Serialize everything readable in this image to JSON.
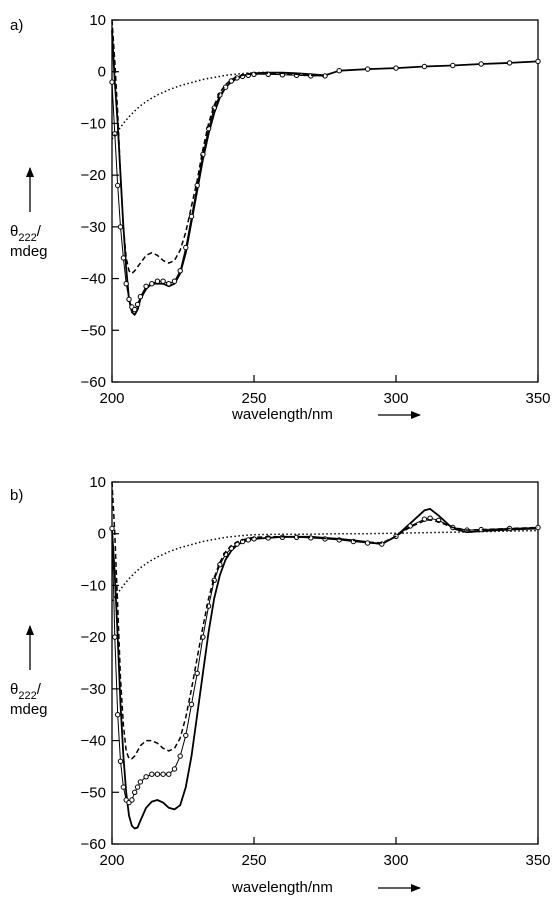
{
  "chart_data": [
    {
      "type": "line",
      "panel_label": "a)",
      "xlabel": "wavelength/nm",
      "ylabel_symbol": "θ",
      "ylabel_subscript": "222",
      "ylabel_slash": "/",
      "ylabel_unit": "mdeg",
      "xlim": [
        200,
        350
      ],
      "ylim": [
        -60,
        10
      ],
      "xticks": [
        200,
        250,
        300,
        350
      ],
      "yticks": [
        10,
        0,
        -10,
        -20,
        -30,
        -40,
        -50,
        -60
      ],
      "grid": false,
      "series": [
        {
          "style": "solid",
          "x": [
            200,
            201,
            202,
            203,
            204,
            205,
            206,
            207,
            208,
            209,
            210,
            212,
            214,
            216,
            218,
            220,
            222,
            224,
            226,
            228,
            230,
            232,
            234,
            236,
            238,
            240,
            242,
            244,
            246,
            248,
            250,
            255,
            260,
            265,
            270,
            275,
            280,
            290,
            300,
            310,
            320,
            330,
            340,
            350
          ],
          "y": [
            8,
            -2,
            -10,
            -20,
            -30,
            -38,
            -44,
            -46.5,
            -47,
            -46,
            -44,
            -42,
            -41,
            -41,
            -41,
            -41.5,
            -41,
            -39,
            -35,
            -29,
            -23,
            -17,
            -12,
            -8,
            -5,
            -3,
            -2,
            -1.3,
            -0.8,
            -0.5,
            -0.3,
            -0.2,
            -0.2,
            -0.3,
            -0.5,
            -0.7,
            0.2,
            0.5,
            0.7,
            1.0,
            1.2,
            1.5,
            1.7,
            2.0
          ]
        },
        {
          "style": "circles",
          "x": [
            200,
            201,
            202,
            203,
            204,
            205,
            206,
            207,
            208,
            209,
            210,
            212,
            214,
            216,
            218,
            220,
            222,
            224,
            226,
            228,
            230,
            232,
            234,
            236,
            238,
            240,
            242,
            244,
            246,
            248,
            250,
            255,
            260,
            265,
            270,
            275,
            280,
            290,
            300,
            310,
            320,
            330,
            340,
            350
          ],
          "y": [
            -2,
            -12,
            -22,
            -30,
            -36,
            -41,
            -44,
            -45.5,
            -46,
            -45,
            -43.5,
            -41.5,
            -41,
            -40.5,
            -40.5,
            -41,
            -40.5,
            -38.5,
            -34,
            -28,
            -22,
            -16,
            -11,
            -7,
            -4.5,
            -3,
            -1.8,
            -1.2,
            -0.9,
            -0.7,
            -0.5,
            -0.5,
            -0.6,
            -0.7,
            -0.8,
            -0.8,
            0.2,
            0.5,
            0.7,
            1.0,
            1.2,
            1.5,
            1.7,
            2.0
          ]
        },
        {
          "style": "dashed",
          "x": [
            200,
            201,
            202,
            203,
            204,
            205,
            206,
            207,
            208,
            210,
            212,
            214,
            216,
            218,
            220,
            222,
            224,
            226,
            228,
            230,
            232,
            234,
            236,
            238,
            240,
            242,
            244,
            246,
            248,
            250,
            255,
            260,
            265,
            270,
            275
          ],
          "y": [
            10,
            2,
            -8,
            -20,
            -30,
            -36,
            -38.5,
            -39,
            -38.5,
            -37,
            -35.5,
            -35,
            -35.5,
            -36.5,
            -37,
            -36.5,
            -34.5,
            -31,
            -26,
            -21,
            -15,
            -10,
            -6.5,
            -4,
            -2.5,
            -1.5,
            -1,
            -0.7,
            -0.5,
            -0.4,
            -0.3,
            -0.3,
            -0.5,
            -0.7,
            -0.8
          ]
        },
        {
          "style": "dotted",
          "x": [
            200,
            202,
            204,
            206,
            208,
            210,
            212,
            214,
            216,
            218,
            220,
            222,
            224,
            226,
            228,
            230,
            232,
            234,
            236,
            238,
            240,
            245,
            250,
            255
          ],
          "y": [
            -13,
            -11.5,
            -10,
            -8.7,
            -7.6,
            -6.6,
            -5.8,
            -5.1,
            -4.5,
            -4,
            -3.5,
            -3.1,
            -2.7,
            -2.4,
            -2.1,
            -1.8,
            -1.5,
            -1.3,
            -1.1,
            -0.9,
            -0.7,
            -0.4,
            -0.2,
            -0.1
          ]
        }
      ]
    },
    {
      "type": "line",
      "panel_label": "b)",
      "xlabel": "wavelength/nm",
      "ylabel_symbol": "θ",
      "ylabel_subscript": "222",
      "ylabel_slash": "/",
      "ylabel_unit": "mdeg",
      "xlim": [
        200,
        350
      ],
      "ylim": [
        -60,
        10
      ],
      "xticks": [
        200,
        250,
        300,
        350
      ],
      "yticks": [
        10,
        0,
        -10,
        -20,
        -30,
        -40,
        -50,
        -60
      ],
      "grid": false,
      "series": [
        {
          "style": "solid",
          "x": [
            200,
            201,
            202,
            203,
            204,
            205,
            206,
            207,
            208,
            209,
            210,
            212,
            214,
            216,
            218,
            220,
            222,
            224,
            226,
            228,
            230,
            232,
            234,
            236,
            238,
            240,
            242,
            244,
            246,
            248,
            250,
            255,
            260,
            265,
            270,
            275,
            280,
            285,
            290,
            295,
            300,
            305,
            310,
            312,
            315,
            320,
            325,
            330,
            340,
            350
          ],
          "y": [
            1,
            -8,
            -20,
            -33,
            -43,
            -50,
            -54.5,
            -56.5,
            -57,
            -56.8,
            -55.5,
            -53,
            -51.8,
            -51.5,
            -52,
            -53,
            -53.3,
            -52.5,
            -49,
            -43,
            -35,
            -27,
            -19,
            -12.5,
            -8,
            -5,
            -3.3,
            -2.2,
            -1.6,
            -1.2,
            -1,
            -0.8,
            -0.6,
            -0.6,
            -0.6,
            -0.8,
            -1,
            -1.3,
            -1.6,
            -2,
            -0.5,
            2,
            4.5,
            4.8,
            3.5,
            1,
            0.3,
            0.5,
            0.8,
            1.0
          ]
        },
        {
          "style": "circles",
          "x": [
            200,
            201,
            202,
            203,
            204,
            205,
            206,
            207,
            208,
            209,
            210,
            212,
            214,
            216,
            218,
            220,
            222,
            224,
            226,
            228,
            230,
            232,
            234,
            236,
            238,
            240,
            242,
            244,
            246,
            248,
            250,
            255,
            260,
            265,
            270,
            275,
            280,
            285,
            290,
            295,
            300,
            305,
            310,
            312,
            315,
            320,
            325,
            330,
            340,
            350
          ],
          "y": [
            1,
            -20,
            -35,
            -44,
            -49,
            -51.5,
            -52,
            -51.5,
            -50,
            -49,
            -48,
            -47,
            -46.5,
            -46.5,
            -46.5,
            -46.5,
            -45.5,
            -43,
            -39,
            -33,
            -27,
            -20,
            -14,
            -9,
            -6,
            -4,
            -2.8,
            -2,
            -1.5,
            -1.2,
            -1,
            -0.8,
            -0.7,
            -0.7,
            -0.8,
            -1,
            -1.2,
            -1.5,
            -1.8,
            -2,
            -0.5,
            1.5,
            2.8,
            3,
            2.6,
            1.2,
            0.7,
            0.8,
            1.0,
            1.2
          ]
        },
        {
          "style": "dashed",
          "x": [
            200,
            201,
            202,
            203,
            204,
            205,
            206,
            207,
            208,
            209,
            210,
            212,
            214,
            216,
            218,
            220,
            222,
            224,
            226,
            228,
            230,
            232,
            234,
            236,
            238,
            240,
            242,
            244,
            246,
            248,
            250,
            255,
            260,
            265,
            270,
            275,
            280,
            285,
            290,
            295,
            300,
            305,
            310,
            312,
            315,
            320,
            325,
            330,
            340,
            350
          ],
          "y": [
            10,
            0,
            -14,
            -28,
            -37,
            -42,
            -43.5,
            -43.5,
            -43,
            -42,
            -41,
            -40,
            -40,
            -40.5,
            -41.5,
            -42,
            -41.5,
            -39.5,
            -35.5,
            -30,
            -24,
            -18,
            -12.5,
            -8.5,
            -5.5,
            -3.5,
            -2.3,
            -1.6,
            -1.2,
            -0.9,
            -0.7,
            -0.6,
            -0.6,
            -0.6,
            -0.7,
            -0.9,
            -1,
            -1.3,
            -1.6,
            -1.8,
            -0.5,
            1.3,
            2.5,
            2.7,
            2.3,
            1.2,
            0.7,
            0.8,
            1.0,
            1.2
          ]
        },
        {
          "style": "dotted",
          "x": [
            200,
            202,
            204,
            206,
            208,
            210,
            212,
            214,
            216,
            218,
            220,
            222,
            224,
            226,
            228,
            230,
            232,
            234,
            236,
            238,
            240,
            245,
            250,
            260,
            270,
            280,
            290,
            300,
            310,
            320,
            330,
            340,
            350
          ],
          "y": [
            -13,
            -11.5,
            -10,
            -8.7,
            -7.6,
            -6.6,
            -5.8,
            -5.1,
            -4.5,
            -4,
            -3.5,
            -3.1,
            -2.7,
            -2.4,
            -2.1,
            -1.8,
            -1.5,
            -1.3,
            -1.1,
            -0.9,
            -0.7,
            -0.4,
            -0.2,
            -0.1,
            -0.1,
            0,
            0,
            0.1,
            0.2,
            0.3,
            0.4,
            0.5,
            0.6
          ]
        }
      ]
    }
  ]
}
